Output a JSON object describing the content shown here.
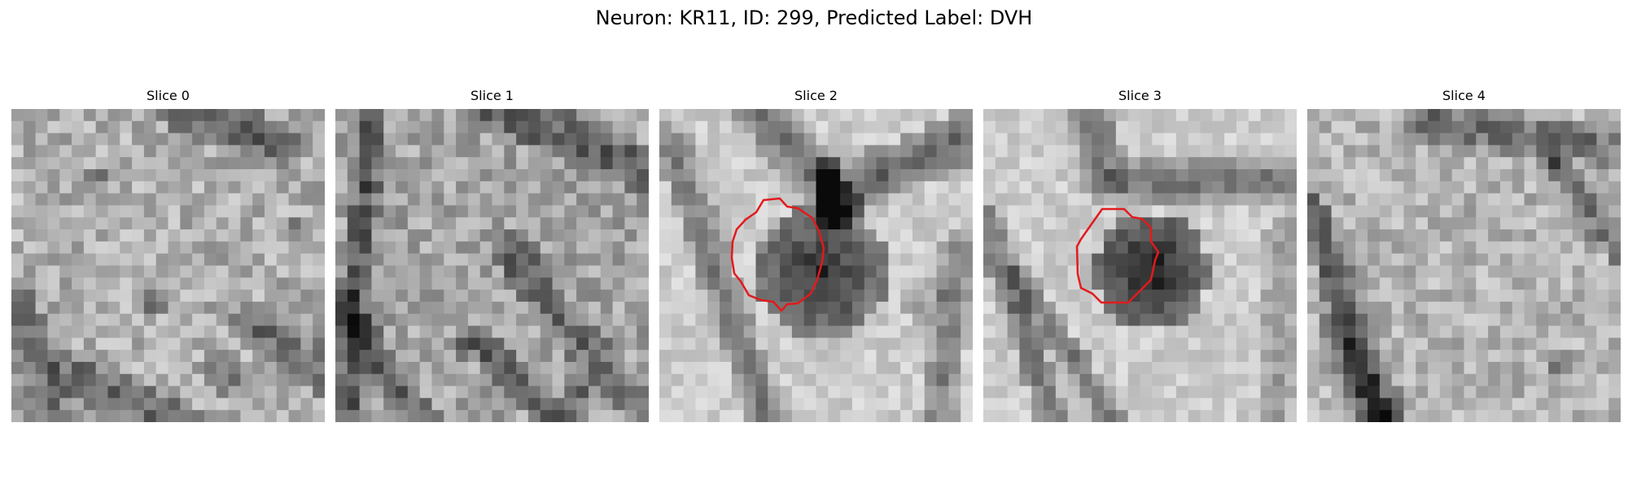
{
  "figure": {
    "title": "Neuron: KR11, ID: 299, Predicted Label: DVH"
  },
  "slices": [
    {
      "title": "Slice 0",
      "has_contour": false
    },
    {
      "title": "Slice 1",
      "has_contour": false
    },
    {
      "title": "Slice 2",
      "has_contour": true
    },
    {
      "title": "Slice 3",
      "has_contour": true
    },
    {
      "title": "Slice 4",
      "has_contour": false
    }
  ],
  "colors": {
    "contour": "#e31a1c",
    "background": "#ffffff"
  }
}
